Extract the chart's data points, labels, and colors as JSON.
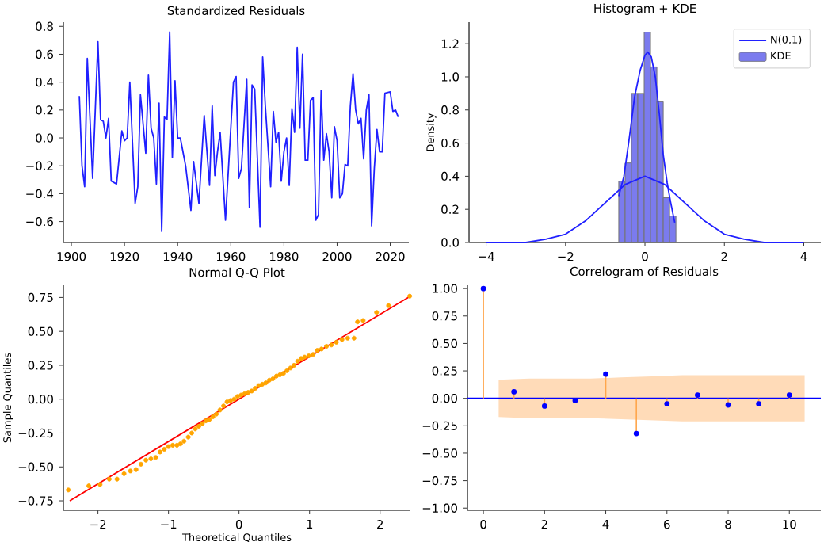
{
  "chart_data": [
    {
      "type": "line",
      "title": "Standardized Residuals",
      "color": "#2020ff",
      "x": [
        1903,
        1904,
        1905,
        1906,
        1908,
        1910,
        1911,
        1912,
        1913,
        1914,
        1915,
        1917,
        1919,
        1920,
        1921,
        1922,
        1924,
        1925,
        1926,
        1928,
        1929,
        1930,
        1931,
        1932,
        1933,
        1934,
        1935,
        1936,
        1937,
        1938,
        1939,
        1940,
        1941,
        1943,
        1945,
        1946,
        1948,
        1950,
        1952,
        1953,
        1954,
        1955,
        1956,
        1958,
        1961,
        1962,
        1963,
        1964,
        1966,
        1967,
        1968,
        1969,
        1971,
        1972,
        1973,
        1975,
        1976,
        1977,
        1978,
        1979,
        1980,
        1981,
        1982,
        1983,
        1984,
        1985,
        1986,
        1987,
        1988,
        1989,
        1990,
        1991,
        1992,
        1993,
        1994,
        1995,
        1996,
        1997,
        1998,
        1999,
        2000,
        2001,
        2002,
        2003,
        2004,
        2005,
        2006,
        2007,
        2008,
        2009,
        2010,
        2011,
        2012,
        2013,
        2014,
        2015,
        2016,
        2017,
        2018,
        2020,
        2021,
        2022,
        2023
      ],
      "values": [
        0.3,
        -0.2,
        -0.35,
        0.57,
        -0.29,
        0.69,
        0.13,
        0.12,
        0.0,
        0.14,
        -0.31,
        -0.33,
        0.05,
        -0.02,
        0.0,
        0.4,
        -0.47,
        -0.35,
        0.31,
        -0.11,
        0.45,
        0.07,
        0.0,
        -0.33,
        0.25,
        -0.67,
        0.15,
        0.13,
        0.76,
        -0.14,
        0.41,
        0.0,
        0.0,
        -0.2,
        -0.52,
        -0.17,
        -0.47,
        0.16,
        -0.34,
        0.23,
        -0.27,
        -0.1,
        0.04,
        -0.59,
        0.4,
        0.44,
        -0.29,
        -0.22,
        0.42,
        -0.5,
        0.38,
        0.35,
        -0.64,
        0.58,
        0.23,
        -0.35,
        0.19,
        -0.03,
        0.04,
        -0.31,
        -0.1,
        0.0,
        -0.34,
        0.21,
        0.04,
        0.65,
        0.07,
        0.6,
        -0.16,
        -0.16,
        0.27,
        0.29,
        -0.59,
        -0.55,
        0.34,
        -0.16,
        0.03,
        -0.1,
        -0.43,
        0.08,
        -0.02,
        -0.43,
        -0.4,
        -0.19,
        -0.2,
        0.23,
        0.46,
        0.2,
        0.1,
        0.14,
        -0.15,
        0.2,
        0.31,
        -0.63,
        -0.22,
        0.06,
        -0.1,
        -0.1,
        0.32,
        0.33,
        0.19,
        0.2,
        0.15
      ],
      "xlim": [
        1897,
        2027
      ],
      "ylim": [
        -0.75,
        0.83
      ],
      "xticks": [
        1900,
        1920,
        1940,
        1960,
        1980,
        2000,
        2020
      ],
      "yticks": [
        {
          "value": -0.6,
          "label": "−0.6"
        },
        {
          "value": -0.4,
          "label": "−0.4"
        },
        {
          "value": -0.2,
          "label": "−0.2"
        },
        {
          "value": 0,
          "label": "0.0"
        },
        {
          "value": 0.2,
          "label": "0.2"
        },
        {
          "value": 0.4,
          "label": "0.4"
        },
        {
          "value": 0.6,
          "label": "0.6"
        },
        {
          "value": 0.8,
          "label": "0.8"
        }
      ]
    },
    {
      "type": "histogram",
      "title": "Histogram + KDE",
      "ylabel": "Density",
      "legend": "top right",
      "series": [
        {
          "type": "line",
          "name": "N(0,1)",
          "color": "#2020ff",
          "x": [
            -4,
            -3.5,
            -3,
            -2.5,
            -2,
            -1.5,
            -1,
            -0.5,
            0,
            0.5,
            1,
            1.5,
            2,
            2.5,
            3,
            3.5,
            4
          ],
          "values": [
            0.0,
            0.0,
            0.0,
            0.02,
            0.05,
            0.13,
            0.24,
            0.35,
            0.4,
            0.35,
            0.24,
            0.13,
            0.05,
            0.02,
            0.0,
            0.0,
            0.0
          ]
        },
        {
          "type": "line",
          "color": "#2020ff",
          "x": [
            -0.66,
            -0.53,
            -0.4,
            -0.26,
            -0.12,
            0,
            0.07,
            0.16,
            0.26,
            0.36,
            0.46,
            0.56,
            0.64,
            0.75
          ],
          "values": [
            0.28,
            0.4,
            0.62,
            0.88,
            1.04,
            1.13,
            1.15,
            1.12,
            1.0,
            0.78,
            0.53,
            0.36,
            0.25,
            0.12
          ]
        },
        {
          "type": "histogram",
          "name": "KDE",
          "color": "#7b7bee",
          "bins": [
            -0.66,
            -0.5,
            -0.34,
            -0.18,
            -0.02,
            0.14,
            0.3,
            0.46,
            0.62,
            0.78
          ],
          "values": [
            0.37,
            0.48,
            0.9,
            0.9,
            1.27,
            1.06,
            0.85,
            0.27,
            0.16
          ]
        }
      ],
      "xlim": [
        -4.43,
        4.43
      ],
      "ylim": [
        0,
        1.33
      ],
      "xticks": [
        {
          "value": -4,
          "label": "−4"
        },
        {
          "value": -2,
          "label": "−2"
        },
        {
          "value": 0,
          "label": "0"
        },
        {
          "value": 2,
          "label": "2"
        },
        {
          "value": 4,
          "label": "4"
        }
      ],
      "yticks": [
        {
          "value": 0,
          "label": "0.0"
        },
        {
          "value": 0.2,
          "label": "0.2"
        },
        {
          "value": 0.4,
          "label": "0.4"
        },
        {
          "value": 0.6,
          "label": "0.6"
        },
        {
          "value": 0.8,
          "label": "0.8"
        },
        {
          "value": 1.0,
          "label": "1.0"
        },
        {
          "value": 1.2,
          "label": "1.2"
        }
      ]
    },
    {
      "type": "scatter",
      "title": "Normal Q-Q Plot",
      "xlabel": "Theoretical Quantiles",
      "ylabel": "Sample Quantiles",
      "series": [
        {
          "type": "scatter",
          "color": "#ffa500",
          "marker": "circle",
          "x": [
            -2.42,
            -2.13,
            -1.97,
            -1.84,
            -1.73,
            -1.63,
            -1.54,
            -1.46,
            -1.39,
            -1.32,
            -1.25,
            -1.18,
            -1.12,
            -1.06,
            -1.0,
            -0.94,
            -0.88,
            -0.83,
            -0.78,
            -0.72,
            -0.67,
            -0.62,
            -0.57,
            -0.52,
            -0.47,
            -0.42,
            -0.37,
            -0.32,
            -0.27,
            -0.22,
            -0.17,
            -0.12,
            -0.07,
            -0.02,
            0.03,
            0.08,
            0.13,
            0.18,
            0.23,
            0.28,
            0.33,
            0.38,
            0.43,
            0.48,
            0.53,
            0.58,
            0.63,
            0.68,
            0.73,
            0.78,
            0.83,
            0.88,
            0.93,
            0.99,
            1.05,
            1.11,
            1.17,
            1.24,
            1.31,
            1.38,
            1.46,
            1.54,
            1.63,
            1.68,
            1.76,
            1.95,
            2.12,
            2.42
          ],
          "values": [
            -0.67,
            -0.64,
            -0.63,
            -0.59,
            -0.59,
            -0.55,
            -0.53,
            -0.52,
            -0.48,
            -0.45,
            -0.44,
            -0.43,
            -0.39,
            -0.37,
            -0.35,
            -0.34,
            -0.34,
            -0.33,
            -0.31,
            -0.28,
            -0.25,
            -0.22,
            -0.2,
            -0.18,
            -0.16,
            -0.15,
            -0.13,
            -0.11,
            -0.08,
            -0.05,
            -0.02,
            -0.01,
            0.0,
            0.02,
            0.03,
            0.04,
            0.05,
            0.06,
            0.08,
            0.1,
            0.11,
            0.12,
            0.14,
            0.15,
            0.17,
            0.18,
            0.19,
            0.21,
            0.23,
            0.25,
            0.28,
            0.3,
            0.31,
            0.32,
            0.33,
            0.36,
            0.37,
            0.39,
            0.4,
            0.42,
            0.44,
            0.45,
            0.45,
            0.57,
            0.58,
            0.64,
            0.69,
            0.76
          ]
        },
        {
          "type": "line",
          "color": "#ff0000",
          "x": [
            -2.4,
            2.43
          ],
          "values": [
            -0.75,
            0.76
          ]
        }
      ],
      "xlim": [
        -2.49,
        2.43
      ],
      "ylim": [
        -0.82,
        0.84
      ],
      "xticks": [
        {
          "value": -2,
          "label": "−2"
        },
        {
          "value": -1,
          "label": "−1"
        },
        {
          "value": 0,
          "label": "0"
        },
        {
          "value": 1,
          "label": "1"
        },
        {
          "value": 2,
          "label": "2"
        }
      ],
      "yticks": [
        {
          "value": -0.75,
          "label": "−0.75"
        },
        {
          "value": -0.5,
          "label": "−0.50"
        },
        {
          "value": -0.25,
          "label": "−0.25"
        },
        {
          "value": 0,
          "label": "0.00"
        },
        {
          "value": 0.25,
          "label": "0.25"
        },
        {
          "value": 0.5,
          "label": "0.50"
        },
        {
          "value": 0.75,
          "label": "0.75"
        }
      ]
    },
    {
      "type": "lollipop",
      "title": "Correlogram of Residuals",
      "series": [
        {
          "type": "line",
          "color": "#0000ff",
          "x": [
            -0.52,
            0.5,
            1.5,
            2.5,
            3.5,
            4.5,
            5.5,
            6.5,
            7.5,
            8.5,
            9.5,
            10.5,
            11.03
          ],
          "values": [
            0,
            0,
            0,
            0,
            0,
            0,
            0,
            0,
            0,
            0,
            0,
            0,
            0
          ],
          "upper": [
            null,
            0.17,
            0.18,
            0.18,
            0.18,
            0.19,
            0.2,
            0.21,
            0.21,
            0.21,
            0.21,
            0.21,
            null
          ],
          "lower": [
            null,
            -0.17,
            -0.18,
            -0.18,
            -0.18,
            -0.19,
            -0.2,
            -0.21,
            -0.21,
            -0.21,
            -0.21,
            -0.21,
            null
          ]
        },
        {
          "type": "lollipop",
          "color": "#0000ff",
          "marker": "circle",
          "x": [
            0,
            1,
            2,
            3,
            4,
            5,
            6,
            7,
            8,
            9,
            10
          ],
          "values": [
            1.0,
            0.06,
            -0.07,
            -0.02,
            0.22,
            -0.32,
            -0.05,
            0.03,
            -0.06,
            -0.05,
            0.03
          ]
        }
      ],
      "xlim": [
        -0.52,
        11.03
      ],
      "ylim": [
        -1.02,
        1.03
      ],
      "xticks": [
        0,
        2,
        4,
        6,
        8,
        10
      ],
      "yticks": [
        {
          "value": -1,
          "label": "−1.00"
        },
        {
          "value": -0.75,
          "label": "−0.75"
        },
        {
          "value": -0.5,
          "label": "−0.50"
        },
        {
          "value": -0.25,
          "label": "−0.25"
        },
        {
          "value": 0,
          "label": "0.00"
        },
        {
          "value": 0.25,
          "label": "0.25"
        },
        {
          "value": 0.5,
          "label": "0.50"
        },
        {
          "value": 0.75,
          "label": "0.75"
        },
        {
          "value": 1,
          "label": "1.00"
        }
      ]
    }
  ]
}
